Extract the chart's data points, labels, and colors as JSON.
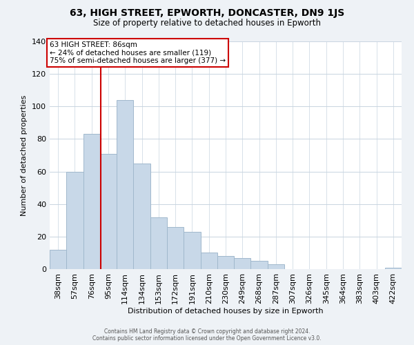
{
  "title": "63, HIGH STREET, EPWORTH, DONCASTER, DN9 1JS",
  "subtitle": "Size of property relative to detached houses in Epworth",
  "xlabel": "Distribution of detached houses by size in Epworth",
  "ylabel": "Number of detached properties",
  "bin_labels": [
    "38sqm",
    "57sqm",
    "76sqm",
    "95sqm",
    "114sqm",
    "134sqm",
    "153sqm",
    "172sqm",
    "191sqm",
    "210sqm",
    "230sqm",
    "249sqm",
    "268sqm",
    "287sqm",
    "307sqm",
    "326sqm",
    "345sqm",
    "364sqm",
    "383sqm",
    "403sqm",
    "422sqm"
  ],
  "bar_values": [
    12,
    60,
    83,
    71,
    104,
    65,
    32,
    26,
    23,
    10,
    8,
    7,
    5,
    3,
    0,
    0,
    0,
    0,
    0,
    0,
    1
  ],
  "bar_color": "#c8d8e8",
  "bar_edge_color": "#a0b8cc",
  "vline_color": "#cc0000",
  "vline_x": 2.53,
  "annotation_text": "63 HIGH STREET: 86sqm\n← 24% of detached houses are smaller (119)\n75% of semi-detached houses are larger (377) →",
  "annotation_box_color": "#ffffff",
  "annotation_box_edge": "#cc0000",
  "ylim": [
    0,
    140
  ],
  "yticks": [
    0,
    20,
    40,
    60,
    80,
    100,
    120,
    140
  ],
  "footer_line1": "Contains HM Land Registry data © Crown copyright and database right 2024.",
  "footer_line2": "Contains public sector information licensed under the Open Government Licence v3.0.",
  "background_color": "#eef2f6",
  "plot_bg_color": "#ffffff",
  "grid_color": "#c8d4e0"
}
